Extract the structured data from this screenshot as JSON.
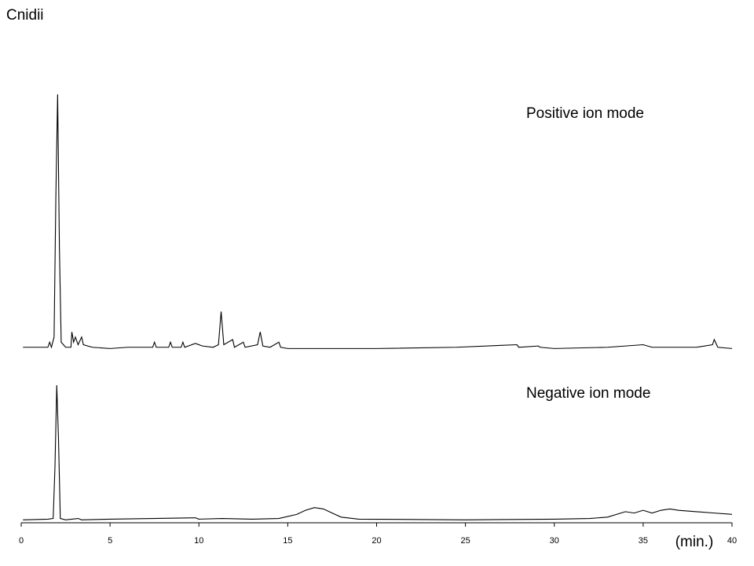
{
  "chart_data": [
    {
      "type": "line",
      "title": "Cnidii",
      "annotation": "Positive ion mode",
      "color": "#000000",
      "xlim": [
        0,
        40
      ],
      "ylim": [
        0,
        100
      ],
      "x": [
        0.1,
        1.5,
        1.6,
        1.7,
        1.85,
        1.95,
        2.05,
        2.15,
        2.25,
        2.5,
        2.8,
        2.85,
        2.95,
        3.05,
        3.2,
        3.4,
        3.5,
        4,
        5,
        6,
        7.4,
        7.5,
        7.6,
        8.3,
        8.4,
        8.5,
        9.0,
        9.1,
        9.2,
        9.8,
        10.2,
        10.8,
        11.1,
        11.25,
        11.4,
        11.9,
        12,
        12.5,
        12.6,
        13.3,
        13.45,
        13.6,
        14,
        14.5,
        14.6,
        15,
        20,
        24.5,
        27.9,
        28,
        29.1,
        29.2,
        30,
        33,
        34,
        35,
        35.5,
        38,
        38.9,
        39,
        39.2,
        40
      ],
      "values": [
        1,
        1,
        3,
        1,
        5,
        60,
        100,
        40,
        3,
        1,
        1,
        7,
        3,
        5,
        2,
        5,
        2,
        1,
        0.5,
        1,
        1,
        3,
        1,
        1,
        3,
        1,
        1,
        3,
        1,
        2.5,
        1.5,
        1,
        2,
        15,
        2,
        4,
        1,
        3,
        1,
        2,
        7,
        1.5,
        1,
        3,
        1,
        0.5,
        0.5,
        1,
        2,
        1,
        1.5,
        1,
        0.5,
        1,
        1.5,
        2,
        1,
        1,
        2,
        4,
        1,
        0.5
      ]
    },
    {
      "type": "line",
      "annotation": "Negative ion mode",
      "color": "#000000",
      "xlabel": "(min.)",
      "xlim": [
        0,
        40
      ],
      "ylim": [
        0,
        100
      ],
      "xticks": [
        0,
        5,
        10,
        15,
        20,
        25,
        30,
        35,
        40
      ],
      "x": [
        0.1,
        1.5,
        1.8,
        1.9,
        2.0,
        2.1,
        2.2,
        2.5,
        3.2,
        3.4,
        5,
        9.8,
        10,
        11.3,
        13,
        14.5,
        15.5,
        16,
        16.5,
        17,
        17.5,
        18,
        19,
        25,
        30,
        32,
        33,
        34,
        34.5,
        35,
        35.5,
        36,
        36.5,
        37,
        38,
        39,
        40
      ],
      "values": [
        1,
        1.5,
        2,
        40,
        100,
        60,
        2,
        1,
        2,
        1,
        1.5,
        2.5,
        1.5,
        2,
        1.5,
        2,
        5,
        8,
        10,
        9,
        6,
        3,
        1.5,
        1,
        1.5,
        2,
        3,
        7,
        6,
        8,
        6,
        8,
        9,
        8,
        7,
        6,
        5
      ]
    }
  ]
}
